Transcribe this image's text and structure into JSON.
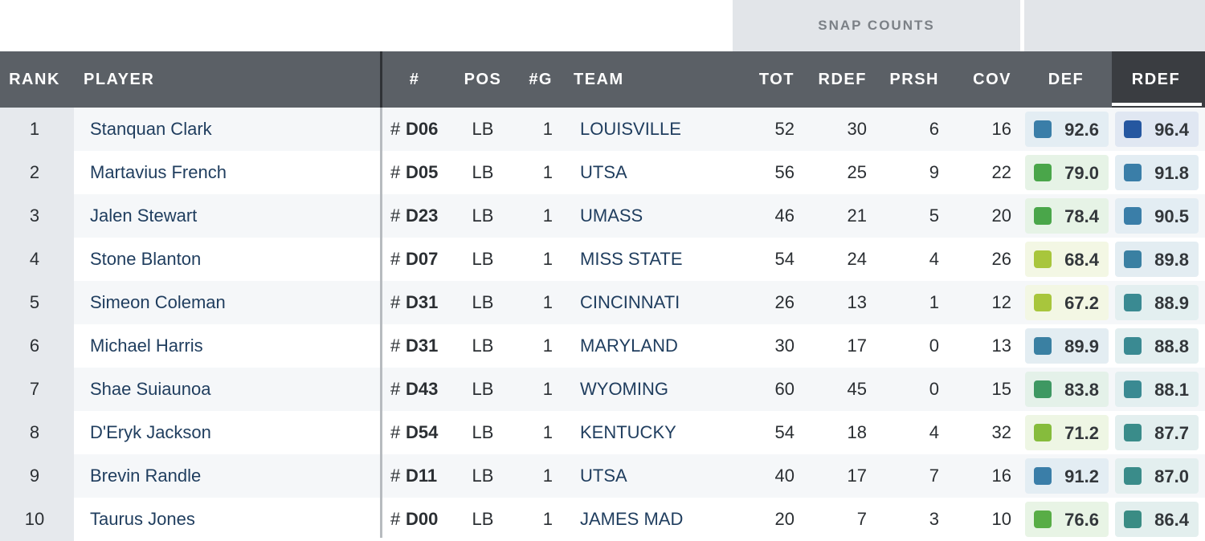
{
  "table": {
    "group_header": "SNAP COUNTS",
    "jersey_prefix": "#",
    "columns": [
      "RANK",
      "PLAYER",
      "#",
      "POS",
      "#G",
      "TEAM",
      "TOT",
      "RDEF",
      "PRSH",
      "COV",
      "DEF",
      "RDEF"
    ],
    "rows": [
      {
        "rank": "1",
        "player": "Stanquan Clark",
        "jersey": "D06",
        "pos": "LB",
        "games": "1",
        "team": "LOUISVILLE",
        "tot": "52",
        "rdef": "30",
        "prsh": "6",
        "cov": "16",
        "def_grade": {
          "value": "92.6",
          "color": "#3a7ea8"
        },
        "rdef_grade": {
          "value": "96.4",
          "color": "#2557a0"
        }
      },
      {
        "rank": "2",
        "player": "Martavius French",
        "jersey": "D05",
        "pos": "LB",
        "games": "1",
        "team": "UTSA",
        "tot": "56",
        "rdef": "25",
        "prsh": "9",
        "cov": "22",
        "def_grade": {
          "value": "79.0",
          "color": "#4aa64a"
        },
        "rdef_grade": {
          "value": "91.8",
          "color": "#3a7ea8"
        }
      },
      {
        "rank": "3",
        "player": "Jalen Stewart",
        "jersey": "D23",
        "pos": "LB",
        "games": "1",
        "team": "UMASS",
        "tot": "46",
        "rdef": "21",
        "prsh": "5",
        "cov": "20",
        "def_grade": {
          "value": "78.4",
          "color": "#4aa64a"
        },
        "rdef_grade": {
          "value": "90.5",
          "color": "#3a7ea8"
        }
      },
      {
        "rank": "4",
        "player": "Stone Blanton",
        "jersey": "D07",
        "pos": "LB",
        "games": "1",
        "team": "MISS STATE",
        "tot": "54",
        "rdef": "24",
        "prsh": "4",
        "cov": "26",
        "def_grade": {
          "value": "68.4",
          "color": "#a8c63c"
        },
        "rdef_grade": {
          "value": "89.8",
          "color": "#3a80a2"
        }
      },
      {
        "rank": "5",
        "player": "Simeon Coleman",
        "jersey": "D31",
        "pos": "LB",
        "games": "1",
        "team": "CINCINNATI",
        "tot": "26",
        "rdef": "13",
        "prsh": "1",
        "cov": "12",
        "def_grade": {
          "value": "67.2",
          "color": "#a8c63c"
        },
        "rdef_grade": {
          "value": "88.9",
          "color": "#3a8a92"
        }
      },
      {
        "rank": "6",
        "player": "Michael Harris",
        "jersey": "D31",
        "pos": "LB",
        "games": "1",
        "team": "MARYLAND",
        "tot": "30",
        "rdef": "17",
        "prsh": "0",
        "cov": "13",
        "def_grade": {
          "value": "89.9",
          "color": "#3a80a2"
        },
        "rdef_grade": {
          "value": "88.8",
          "color": "#3a8a92"
        }
      },
      {
        "rank": "7",
        "player": "Shae Suiaunoa",
        "jersey": "D43",
        "pos": "LB",
        "games": "1",
        "team": "WYOMING",
        "tot": "60",
        "rdef": "45",
        "prsh": "0",
        "cov": "15",
        "def_grade": {
          "value": "83.8",
          "color": "#3e9862"
        },
        "rdef_grade": {
          "value": "88.1",
          "color": "#3a8a92"
        }
      },
      {
        "rank": "8",
        "player": "D'Eryk Jackson",
        "jersey": "D54",
        "pos": "LB",
        "games": "1",
        "team": "KENTUCKY",
        "tot": "54",
        "rdef": "18",
        "prsh": "4",
        "cov": "32",
        "def_grade": {
          "value": "71.2",
          "color": "#86bc3c"
        },
        "rdef_grade": {
          "value": "87.7",
          "color": "#3a8c8a"
        }
      },
      {
        "rank": "9",
        "player": "Brevin Randle",
        "jersey": "D11",
        "pos": "LB",
        "games": "1",
        "team": "UTSA",
        "tot": "40",
        "rdef": "17",
        "prsh": "7",
        "cov": "16",
        "def_grade": {
          "value": "91.2",
          "color": "#3a7ea8"
        },
        "rdef_grade": {
          "value": "87.0",
          "color": "#3a8c8a"
        }
      },
      {
        "rank": "10",
        "player": "Taurus Jones",
        "jersey": "D00",
        "pos": "LB",
        "games": "1",
        "team": "JAMES MAD",
        "tot": "20",
        "rdef": "7",
        "prsh": "3",
        "cov": "10",
        "def_grade": {
          "value": "76.6",
          "color": "#58ad46"
        },
        "rdef_grade": {
          "value": "86.4",
          "color": "#3a8c84"
        }
      }
    ]
  }
}
